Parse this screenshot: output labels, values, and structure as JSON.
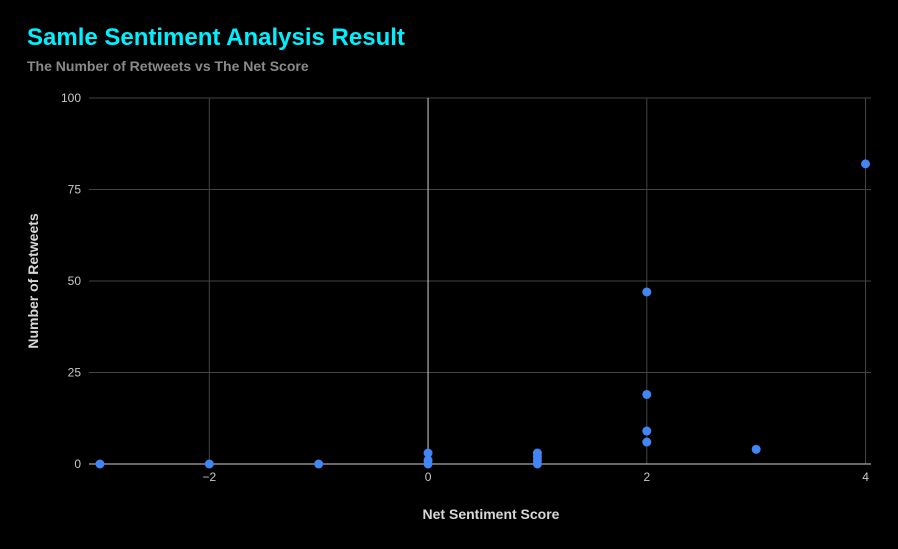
{
  "chart_data": {
    "type": "scatter",
    "title": "Samle Sentiment Analysis Result",
    "subtitle": "The Number of Retweets vs The Net Score",
    "xlabel": "Net Sentiment Score",
    "ylabel": "Number of Retweets",
    "xlim": [
      -3.1,
      4.05
    ],
    "ylim": [
      0,
      100
    ],
    "x_ticks": [
      -2,
      0,
      2,
      4
    ],
    "y_ticks": [
      0,
      25,
      50,
      75,
      100
    ],
    "grid": true,
    "legend": "none",
    "colors": {
      "point": "#4285f4",
      "grid": "#444444",
      "zero_line": "#cfcfcf",
      "title": "#00f0ff"
    },
    "points": [
      {
        "x": -3,
        "y": 0
      },
      {
        "x": -2,
        "y": 0
      },
      {
        "x": -1,
        "y": 0
      },
      {
        "x": 0,
        "y": 3
      },
      {
        "x": 0,
        "y": 1
      },
      {
        "x": 0,
        "y": 0
      },
      {
        "x": 1,
        "y": 3
      },
      {
        "x": 1,
        "y": 2
      },
      {
        "x": 1,
        "y": 1
      },
      {
        "x": 1,
        "y": 0
      },
      {
        "x": 2,
        "y": 47
      },
      {
        "x": 2,
        "y": 19
      },
      {
        "x": 2,
        "y": 9
      },
      {
        "x": 2,
        "y": 6
      },
      {
        "x": 3,
        "y": 4
      },
      {
        "x": 4,
        "y": 82
      }
    ]
  }
}
